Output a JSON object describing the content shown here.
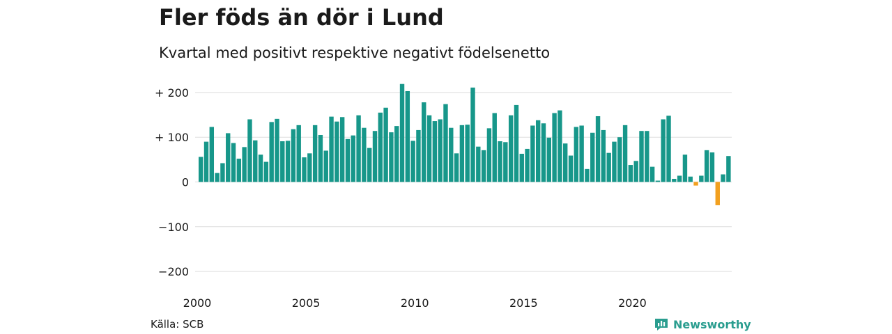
{
  "header": {
    "title": "Fler föds än dör i Lund",
    "subtitle": "Kvartal med positivt respektive negativt födelsenetto"
  },
  "footer": {
    "source": "Källa: SCB",
    "brand": "Newsworthy"
  },
  "colors": {
    "positive": "#17978a",
    "negative": "#f2a01f",
    "grid": "#dddddd",
    "brand": "#2a9d8f"
  },
  "icons": {
    "brand_logo": "bar-chart-bubble-icon"
  },
  "chart_data": {
    "type": "bar",
    "title": "Fler föds än dör i Lund",
    "subtitle": "Kvartal med positivt respektive negativt födelsenetto",
    "xlabel": "",
    "ylabel": "",
    "x_start": 2000,
    "periods_per_year": 4,
    "x_ticks": [
      2000,
      2005,
      2010,
      2015,
      2020
    ],
    "y_ticks": [
      {
        "value": 200,
        "label": "+ 200"
      },
      {
        "value": 100,
        "label": "+ 100"
      },
      {
        "value": 0,
        "label": "0"
      },
      {
        "value": -100,
        "label": "−100"
      },
      {
        "value": -200,
        "label": "−200"
      }
    ],
    "ylim": [
      -210,
      220
    ],
    "grid": true,
    "legend": "none",
    "values": [
      56,
      90,
      123,
      20,
      42,
      109,
      87,
      52,
      78,
      140,
      93,
      61,
      45,
      134,
      141,
      91,
      92,
      118,
      127,
      55,
      64,
      127,
      105,
      70,
      146,
      135,
      145,
      96,
      104,
      149,
      121,
      76,
      114,
      155,
      166,
      111,
      125,
      219,
      203,
      92,
      116,
      178,
      149,
      136,
      140,
      174,
      121,
      64,
      127,
      128,
      211,
      79,
      71,
      120,
      154,
      91,
      89,
      149,
      172,
      63,
      74,
      126,
      138,
      131,
      99,
      154,
      160,
      86,
      59,
      123,
      126,
      29,
      110,
      147,
      116,
      65,
      90,
      100,
      127,
      38,
      47,
      114,
      114,
      34,
      3,
      140,
      148,
      7,
      14,
      61,
      12,
      -8,
      14,
      71,
      66,
      -52,
      17,
      58
    ]
  }
}
